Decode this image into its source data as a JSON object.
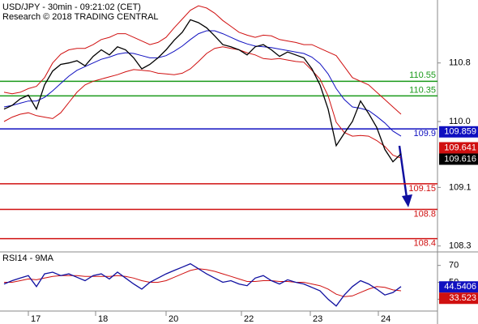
{
  "chart_data": [
    {
      "type": "line",
      "title": "USD/JPY - 30min - 09:21:02 (CET)",
      "subtitle": "Research © 2018 TRADING CENTRAL",
      "xlim": [
        -0.5,
        53.5
      ],
      "xticks": [
        {
          "value": 3,
          "label": "17"
        },
        {
          "value": 11.3,
          "label": "18"
        },
        {
          "value": 20,
          "label": "20"
        },
        {
          "value": 29.3,
          "label": "22"
        },
        {
          "value": 37.8,
          "label": "23"
        },
        {
          "value": 46.2,
          "label": "24"
        }
      ],
      "ylim": [
        108.23,
        111.66
      ],
      "yticks": [
        108.3,
        109.1,
        {
          "value": 110,
          "label": "110.0"
        },
        110.8
      ],
      "series": [
        {
          "color": "#d01010",
          "values": [
            110.4,
            110.38,
            110.4,
            110.45,
            110.48,
            110.6,
            110.8,
            110.92,
            110.98,
            111.0,
            111.0,
            111.05,
            111.12,
            111.15,
            111.2,
            111.2,
            111.15,
            111.1,
            111.05,
            111.08,
            111.15,
            111.28,
            111.4,
            111.52,
            111.58,
            111.55,
            111.48,
            111.38,
            111.3,
            111.22,
            111.18,
            111.15,
            111.18,
            111.17,
            111.12,
            111.1,
            111.08,
            111.05,
            111.05,
            111.0,
            110.95,
            110.9,
            110.75,
            110.6,
            110.55,
            110.5,
            110.4,
            110.3,
            110.2,
            110.1
          ]
        },
        {
          "color": "#d01010",
          "values": [
            110.0,
            110.06,
            110.1,
            110.12,
            110.08,
            110.06,
            110.04,
            110.12,
            110.26,
            110.4,
            110.5,
            110.55,
            110.58,
            110.61,
            110.64,
            110.68,
            110.71,
            110.7,
            110.69,
            110.66,
            110.65,
            110.64,
            110.66,
            110.72,
            110.82,
            110.93,
            111.0,
            111.02,
            111.0,
            110.98,
            110.94,
            110.91,
            110.86,
            110.85,
            110.86,
            110.84,
            110.82,
            110.81,
            110.7,
            110.58,
            110.35,
            109.99,
            109.85,
            109.8,
            109.81,
            109.8,
            109.74,
            109.66,
            109.54,
            109.5
          ]
        },
        {
          "color": "#1010c0",
          "values": [
            110.2,
            110.22,
            110.25,
            110.28,
            110.28,
            110.33,
            110.42,
            110.52,
            110.62,
            110.7,
            110.75,
            110.8,
            110.85,
            110.88,
            110.92,
            110.94,
            110.93,
            110.9,
            110.87,
            110.87,
            110.9,
            110.96,
            111.03,
            111.12,
            111.2,
            111.24,
            111.24,
            111.2,
            111.15,
            111.1,
            111.06,
            111.03,
            111.02,
            111.01,
            110.99,
            110.97,
            110.95,
            110.93,
            110.88,
            110.79,
            110.65,
            110.45,
            110.3,
            110.2,
            110.18,
            110.15,
            110.07,
            109.98,
            109.87,
            109.8
          ]
        },
        {
          "color": "#000000",
          "values": [
            110.17,
            110.22,
            110.31,
            110.36,
            110.17,
            110.5,
            110.69,
            110.78,
            110.8,
            110.83,
            110.76,
            110.89,
            110.98,
            110.91,
            111.02,
            110.98,
            110.87,
            110.72,
            110.78,
            110.87,
            110.98,
            111.11,
            111.22,
            111.39,
            111.35,
            111.28,
            111.17,
            111.05,
            111.02,
            110.98,
            110.91,
            111.02,
            111.05,
            110.98,
            110.89,
            110.95,
            110.91,
            110.87,
            110.72,
            110.5,
            110.17,
            109.67,
            109.84,
            110.0,
            110.28,
            110.11,
            109.92,
            109.62,
            109.45,
            109.56
          ]
        }
      ],
      "levels": [
        {
          "value": 110.55,
          "color": "#1a9a1a"
        },
        {
          "value": 110.35,
          "color": "#1a9a1a"
        },
        {
          "value": 109.9,
          "color": "#1010c0"
        },
        {
          "value": 109.15,
          "color": "#d01010"
        },
        {
          "value": 108.8,
          "color": "#d01010"
        },
        {
          "value": 108.4,
          "color": "#d01010"
        }
      ],
      "tags": [
        {
          "value": 109.859,
          "color": "#1010c0"
        },
        {
          "value": 109.641,
          "color": "#d01010"
        },
        {
          "value": 109.616,
          "color": "#000000"
        }
      ]
    },
    {
      "type": "line",
      "title": "RSI14 - 9MA",
      "xlim": [
        -0.5,
        53.5
      ],
      "ylim": [
        17,
        85
      ],
      "yticks": [
        30,
        50,
        70
      ],
      "series": [
        {
          "color": "#d01010",
          "values": [
            50,
            50,
            52,
            54,
            53,
            55,
            57,
            58,
            58,
            58,
            57,
            57,
            57,
            57,
            58,
            57,
            55,
            52,
            50,
            50,
            52,
            56,
            60,
            64,
            66,
            65,
            63,
            60,
            57,
            54,
            51,
            51,
            52,
            52,
            51,
            51,
            50,
            50,
            48,
            46,
            42,
            36,
            33,
            34,
            38,
            42,
            45,
            44,
            41,
            40
          ]
        },
        {
          "color": "#1010a0",
          "values": [
            48,
            52,
            55,
            58,
            45,
            60,
            62,
            58,
            60,
            56,
            52,
            58,
            60,
            54,
            62,
            55,
            48,
            42,
            50,
            55,
            60,
            64,
            68,
            72,
            66,
            60,
            55,
            50,
            52,
            48,
            46,
            55,
            58,
            52,
            48,
            53,
            50,
            48,
            44,
            40,
            30,
            22,
            35,
            45,
            52,
            48,
            42,
            35,
            38,
            45
          ]
        }
      ],
      "tags": [
        {
          "value": 44.5406,
          "color": "#1010c0"
        },
        {
          "value": 33.523,
          "color": "#d01010"
        }
      ]
    }
  ]
}
